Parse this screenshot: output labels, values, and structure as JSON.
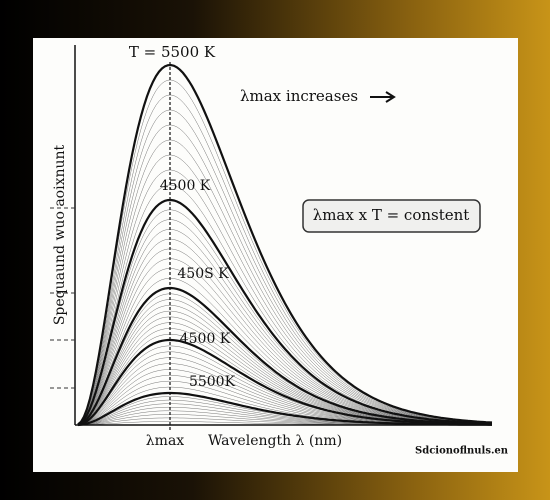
{
  "labels": {
    "curve_1": "T = 5500 K",
    "curve_2": "4500 K",
    "curve_3": "450S K",
    "curve_4": "4500 K",
    "curve_5": "5500K",
    "increases": "λmax  increases",
    "formula": "λmax  x T = constent",
    "y_axis": "Spequaund wuo aoixnunt",
    "lambda_max": "λmax",
    "x_axis": "Wavelength λ (nm)",
    "watermark": "Sdcionoflnuls.en"
  }
}
